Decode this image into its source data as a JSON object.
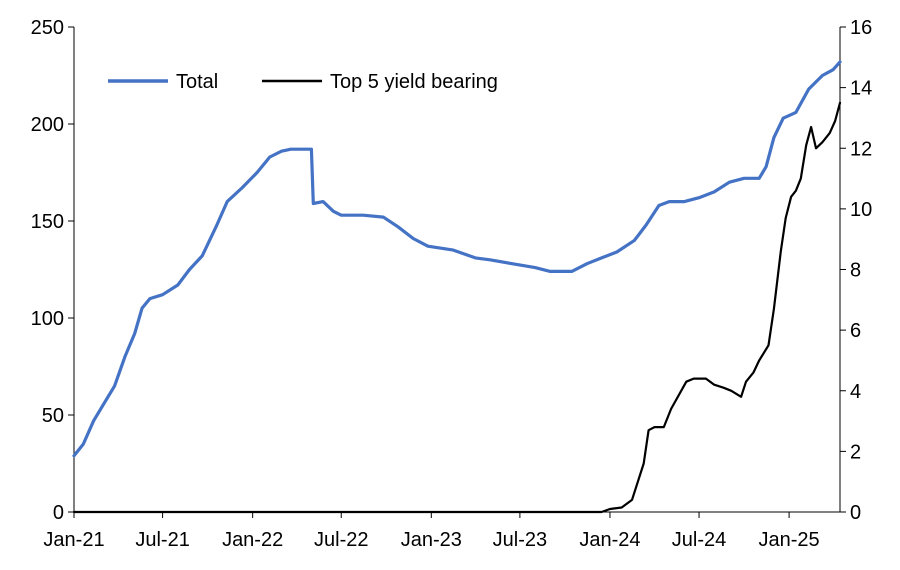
{
  "chart_data": {
    "type": "line",
    "title": "",
    "xlabel": "",
    "ylabel": "",
    "y2label": "",
    "x_ticks": [
      "2021-01-01",
      "2021-07-01",
      "2022-01-01",
      "2022-07-01",
      "2023-01-01",
      "2023-07-01",
      "2024-01-01",
      "2024-07-01",
      "2025-01-01"
    ],
    "x_tick_labels": [
      "Jan-21",
      "Jul-21",
      "Jan-22",
      "Jul-22",
      "Jan-23",
      "Jul-23",
      "Jan-24",
      "Jul-24",
      "Jan-25"
    ],
    "xlim": [
      "2021-01-01",
      "2025-04-15"
    ],
    "ylim": [
      0,
      250
    ],
    "y_ticks": [
      0,
      50,
      100,
      150,
      200,
      250
    ],
    "y2lim": [
      0,
      16
    ],
    "y2_ticks": [
      0,
      2,
      4,
      6,
      8,
      10,
      12,
      14,
      16
    ],
    "grid": false,
    "legend": {
      "position": "top-left",
      "orientation": "horizontal"
    },
    "series": [
      {
        "name": "Total",
        "axis": "left",
        "color": "#4472C4",
        "points": [
          [
            "2021-01-01",
            29
          ],
          [
            "2021-01-20",
            35
          ],
          [
            "2021-02-10",
            47
          ],
          [
            "2021-03-01",
            55
          ],
          [
            "2021-03-25",
            65
          ],
          [
            "2021-04-15",
            80
          ],
          [
            "2021-05-05",
            92
          ],
          [
            "2021-05-20",
            105
          ],
          [
            "2021-06-05",
            110
          ],
          [
            "2021-07-01",
            112
          ],
          [
            "2021-08-01",
            117
          ],
          [
            "2021-08-25",
            125
          ],
          [
            "2021-09-20",
            132
          ],
          [
            "2021-10-20",
            148
          ],
          [
            "2021-11-10",
            160
          ],
          [
            "2021-12-10",
            167
          ],
          [
            "2022-01-10",
            175
          ],
          [
            "2022-02-05",
            183
          ],
          [
            "2022-03-01",
            186
          ],
          [
            "2022-03-20",
            187
          ],
          [
            "2022-05-01",
            187
          ],
          [
            "2022-05-05",
            159
          ],
          [
            "2022-05-25",
            160
          ],
          [
            "2022-06-15",
            155
          ],
          [
            "2022-07-01",
            153
          ],
          [
            "2022-08-15",
            153
          ],
          [
            "2022-09-25",
            152
          ],
          [
            "2022-10-25",
            147
          ],
          [
            "2022-11-25",
            141
          ],
          [
            "2022-12-25",
            137
          ],
          [
            "2023-02-15",
            135
          ],
          [
            "2023-04-01",
            131
          ],
          [
            "2023-05-01",
            130
          ],
          [
            "2023-06-15",
            128
          ],
          [
            "2023-08-01",
            126
          ],
          [
            "2023-09-01",
            124
          ],
          [
            "2023-10-15",
            124
          ],
          [
            "2023-11-15",
            128
          ],
          [
            "2023-12-15",
            131
          ],
          [
            "2024-01-15",
            134
          ],
          [
            "2024-02-20",
            140
          ],
          [
            "2024-03-15",
            148
          ],
          [
            "2024-04-10",
            158
          ],
          [
            "2024-05-01",
            160
          ],
          [
            "2024-06-01",
            160
          ],
          [
            "2024-07-01",
            162
          ],
          [
            "2024-08-01",
            165
          ],
          [
            "2024-09-01",
            170
          ],
          [
            "2024-10-01",
            172
          ],
          [
            "2024-11-01",
            172
          ],
          [
            "2024-11-15",
            178
          ],
          [
            "2024-12-01",
            193
          ],
          [
            "2024-12-20",
            203
          ],
          [
            "2025-01-15",
            206
          ],
          [
            "2025-02-10",
            218
          ],
          [
            "2025-03-10",
            225
          ],
          [
            "2025-04-01",
            228
          ],
          [
            "2025-04-15",
            232
          ]
        ]
      },
      {
        "name": "Top 5 yield bearing",
        "axis": "right",
        "color": "#000000",
        "points": [
          [
            "2021-01-01",
            0
          ],
          [
            "2023-12-15",
            0
          ],
          [
            "2024-01-01",
            0.1
          ],
          [
            "2024-01-25",
            0.15
          ],
          [
            "2024-02-15",
            0.4
          ],
          [
            "2024-03-10",
            1.6
          ],
          [
            "2024-03-20",
            2.7
          ],
          [
            "2024-04-01",
            2.8
          ],
          [
            "2024-04-20",
            2.8
          ],
          [
            "2024-05-05",
            3.4
          ],
          [
            "2024-06-05",
            4.3
          ],
          [
            "2024-06-20",
            4.4
          ],
          [
            "2024-07-15",
            4.4
          ],
          [
            "2024-08-01",
            4.2
          ],
          [
            "2024-08-20",
            4.1
          ],
          [
            "2024-09-05",
            4.0
          ],
          [
            "2024-09-25",
            3.8
          ],
          [
            "2024-10-05",
            4.3
          ],
          [
            "2024-10-20",
            4.6
          ],
          [
            "2024-11-01",
            5.0
          ],
          [
            "2024-11-20",
            5.5
          ],
          [
            "2024-12-01",
            6.7
          ],
          [
            "2024-12-15",
            8.6
          ],
          [
            "2024-12-25",
            9.7
          ],
          [
            "2025-01-05",
            10.4
          ],
          [
            "2025-01-15",
            10.6
          ],
          [
            "2025-01-25",
            11.0
          ],
          [
            "2025-02-05",
            12.1
          ],
          [
            "2025-02-15",
            12.7
          ],
          [
            "2025-02-25",
            12.0
          ],
          [
            "2025-03-10",
            12.2
          ],
          [
            "2025-03-25",
            12.5
          ],
          [
            "2025-04-05",
            12.9
          ],
          [
            "2025-04-15",
            13.5
          ]
        ]
      }
    ]
  }
}
